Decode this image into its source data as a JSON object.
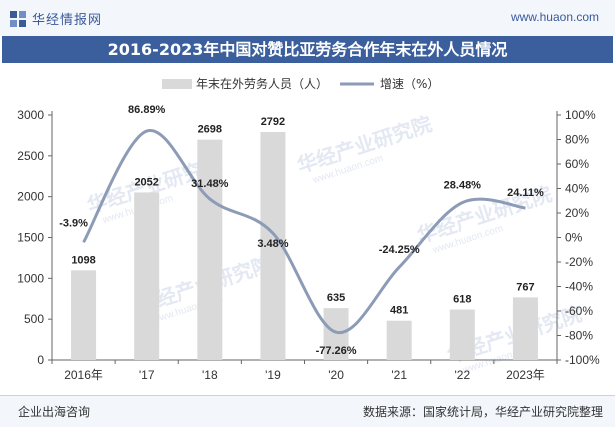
{
  "header": {
    "brand": "华经情报网",
    "url": "www.huaon.com"
  },
  "footer": {
    "left": "企业出海咨询",
    "right": "数据来源：国家统计局，华经产业研究院整理"
  },
  "watermark": "华经产业研究院",
  "watermark_url": "www.huaon.com",
  "colors": {
    "bar": "#d9d9d9",
    "line": "#8c9bb6",
    "title_bg": "#3a5f9c",
    "accent": "#3a5a9a"
  },
  "chart_data": {
    "type": "bar",
    "title": "2016-2023年中国对赞比亚劳务合作年末在外人员情况",
    "categories": [
      "2016年",
      "'17",
      "'18",
      "'19",
      "'20",
      "'21",
      "'22",
      "2023年"
    ],
    "series": [
      {
        "name": "年末在外劳务人员（人）",
        "type": "bar",
        "axis": "left",
        "values": [
          1098,
          2052,
          2698,
          2792,
          635,
          481,
          618,
          767
        ],
        "labels": [
          "1098",
          "2052",
          "2698",
          "2792",
          "635",
          "481",
          "618",
          "767"
        ]
      },
      {
        "name": "增速（%）",
        "type": "line",
        "axis": "right",
        "values": [
          -3.9,
          86.89,
          31.48,
          3.48,
          -77.26,
          -24.25,
          28.48,
          24.11
        ],
        "labels": [
          "-3.9%",
          "86.89%",
          "31.48%",
          "3.48%",
          "-77.26%",
          "-24.25%",
          "28.48%",
          "24.11%"
        ]
      }
    ],
    "y_left": {
      "min": 0,
      "max": 3000,
      "ticks": [
        "0",
        "500",
        "1000",
        "1500",
        "2000",
        "2500",
        "3000"
      ]
    },
    "y_right": {
      "min": -100,
      "max": 100,
      "ticks": [
        "-100%",
        "-80%",
        "-60%",
        "-40%",
        "-20%",
        "0%",
        "20%",
        "40%",
        "60%",
        "80%",
        "100%"
      ]
    },
    "legend_position": "top",
    "grid": false
  }
}
